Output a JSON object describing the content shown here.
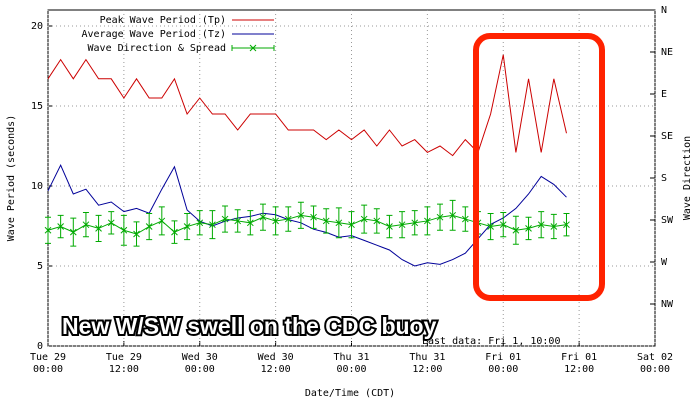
{
  "chart_data": {
    "type": "line",
    "annotations": [
      "Last data: Fri  1, 10:00",
      "New W/SW swell on the CDC buoy"
    ],
    "xlabel": "Date/Time (CDT)",
    "ylabel": "Wave Period (seconds)",
    "y2label": "Wave Direction",
    "x": [
      0,
      2,
      4,
      6,
      8,
      10,
      12,
      14,
      16,
      18,
      20,
      22,
      24,
      26,
      28,
      30,
      32,
      34,
      36,
      38,
      40,
      42,
      44,
      46,
      48,
      50,
      52,
      54,
      56,
      58,
      60,
      62,
      64,
      66,
      68,
      70,
      72,
      74,
      76,
      78,
      80,
      82
    ],
    "xlim": [
      0,
      96
    ],
    "xticks": [
      {
        "value": 0,
        "label": "Tue 29\n00:00"
      },
      {
        "value": 12,
        "label": "Tue 29\n12:00"
      },
      {
        "value": 24,
        "label": "Wed 30\n00:00"
      },
      {
        "value": 36,
        "label": "Wed 30\n12:00"
      },
      {
        "value": 48,
        "label": "Thu 31\n00:00"
      },
      {
        "value": 60,
        "label": "Thu 31\n12:00"
      },
      {
        "value": 72,
        "label": "Fri 01\n00:00"
      },
      {
        "value": 84,
        "label": "Fri 01\n12:00"
      },
      {
        "value": 96,
        "label": "Sat 02\n00:00"
      }
    ],
    "ylim": [
      0,
      21
    ],
    "yticks": [
      0,
      5,
      10,
      15,
      20
    ],
    "y2lim": [
      360,
      0
    ],
    "y2ticks": [
      {
        "value": 0,
        "label": "N"
      },
      {
        "value": 45,
        "label": "NE"
      },
      {
        "value": 90,
        "label": "E"
      },
      {
        "value": 135,
        "label": "SE"
      },
      {
        "value": 180,
        "label": "S"
      },
      {
        "value": 225,
        "label": "SW"
      },
      {
        "value": 270,
        "label": "W"
      },
      {
        "value": 315,
        "label": "NW"
      }
    ],
    "grid": true,
    "legend": "upper left",
    "series": [
      {
        "name": "Peak Wave Period (Tp)",
        "color": "#cc0000",
        "values": [
          16.7,
          17.9,
          16.7,
          17.9,
          16.7,
          16.7,
          15.5,
          16.7,
          15.5,
          15.5,
          16.7,
          14.5,
          15.5,
          14.5,
          14.5,
          13.5,
          14.5,
          14.5,
          14.5,
          13.5,
          13.5,
          13.5,
          12.9,
          13.5,
          12.9,
          13.5,
          12.5,
          13.5,
          12.5,
          12.9,
          12.1,
          12.5,
          11.9,
          12.9,
          12.1,
          14.5,
          18.2,
          12.1,
          16.7,
          12.1,
          16.7,
          13.3
        ]
      },
      {
        "name": "Average Wave Period (Tz)",
        "color": "#000099",
        "values": [
          9.7,
          11.3,
          9.5,
          9.8,
          8.8,
          9.0,
          8.4,
          8.6,
          8.3,
          9.8,
          11.2,
          8.5,
          7.8,
          7.5,
          7.8,
          8.0,
          8.1,
          8.3,
          8.2,
          7.9,
          7.7,
          7.3,
          7.1,
          6.8,
          6.9,
          6.6,
          6.3,
          6.0,
          5.4,
          5.0,
          5.2,
          5.1,
          5.4,
          5.8,
          6.7,
          7.6,
          8.0,
          8.6,
          9.5,
          10.6,
          10.1,
          9.3
        ]
      },
      {
        "name": "Wave Direction & Spread",
        "color": "#00aa00",
        "axis": "y2",
        "values": [
          236,
          232,
          238,
          230,
          234,
          228,
          236,
          240,
          232,
          226,
          238,
          232,
          228,
          230,
          224,
          226,
          228,
          222,
          226,
          224,
          220,
          222,
          226,
          228,
          230,
          224,
          226,
          232,
          230,
          228,
          226,
          222,
          220,
          224,
          228,
          232,
          230,
          236,
          234,
          230,
          232,
          230
        ],
        "errors": [
          14,
          12,
          15,
          13,
          14,
          12,
          16,
          13,
          14,
          15,
          12,
          14,
          13,
          15,
          14,
          12,
          13,
          14,
          15,
          13,
          14,
          12,
          13,
          16,
          14,
          15,
          13,
          12,
          14,
          13,
          15,
          14,
          16,
          13,
          12,
          14,
          13,
          15,
          12,
          14,
          13,
          12
        ]
      }
    ]
  }
}
